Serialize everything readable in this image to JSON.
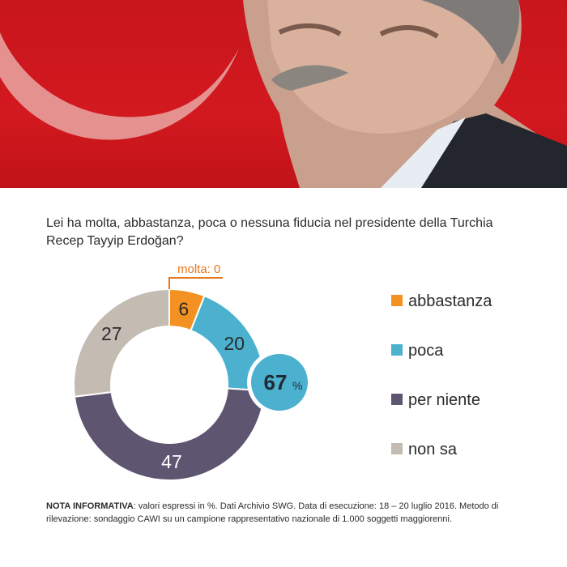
{
  "question": "Lei ha molta, abbastanza, poca o nessuna fiducia nel presidente della Turchia Recep Tayyip Erdoğan?",
  "note": {
    "label": "NOTA INFORMATIVA",
    "text": ": valori espressi in %. Dati Archivio SWG. Data di esecuzione: 18 – 20 luglio 2016. Metodo di rilevazione: sondaggio CAWI su un campione rappresentativo nazionale di 1.000 soggetti maggiorenni."
  },
  "chart_data": {
    "type": "pie",
    "unit": "%",
    "categories": [
      "molta",
      "abbastanza",
      "poca",
      "per niente",
      "non sa"
    ],
    "values": [
      0,
      6,
      20,
      47,
      27
    ],
    "value_labels": [
      "molta: 0",
      "6",
      "20",
      "47",
      "27"
    ],
    "colors": [
      "#e8751a",
      "#f39222",
      "#4bb1cf",
      "#5e5571",
      "#c4bcb3"
    ],
    "legend": [
      "abbastanza",
      "poca",
      "per niente",
      "non sa"
    ],
    "legend_colors": [
      "#f39222",
      "#4bb1cf",
      "#5e5571",
      "#c4bcb3"
    ],
    "legend_position": "right",
    "highlight": {
      "value": "67",
      "unit": "%",
      "color": "#4bb1cf"
    }
  }
}
